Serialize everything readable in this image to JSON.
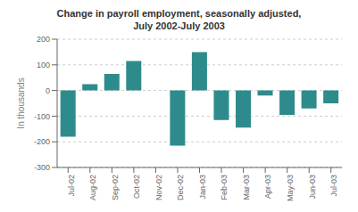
{
  "chart_data": {
    "type": "bar",
    "title": "Change in payroll employment, seasonally adjusted,\nJuly 2002-July 2003",
    "ylabel": "In thousands",
    "categories": [
      "Jul-02",
      "Aug-02",
      "Sep-02",
      "Oct-02",
      "Nov-02",
      "Dec-02",
      "Jan-03",
      "Feb-03",
      "Mar-03",
      "Apr-03",
      "May-03",
      "Jun-03",
      "Jul-03"
    ],
    "values": [
      -180,
      25,
      65,
      115,
      0,
      -215,
      150,
      -115,
      -145,
      -20,
      -95,
      -70,
      -50
    ],
    "color": "#2E8B8B",
    "ylim": [
      -300,
      200
    ],
    "yticks": [
      -300,
      -200,
      -100,
      0,
      100,
      200
    ],
    "grid": true
  }
}
